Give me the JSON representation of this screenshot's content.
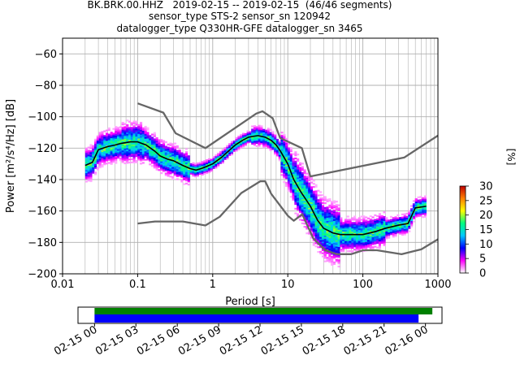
{
  "figure": {
    "title_lines": [
      "BK.BRK.00.HHZ   2019-02-15 -- 2019-02-15  (46/46 segments)",
      "sensor_type STS-2 sensor_sn 120942",
      "datalogger_type Q330HR-GFE datalogger_sn 3465"
    ]
  },
  "chart_data": [
    {
      "type": "heatmap",
      "xlabel": "Period [s]",
      "ylabel": "Power [m²/s⁴/Hz] [dB]",
      "x_scale": "log",
      "xlim": [
        0.01,
        1000
      ],
      "ylim": [
        -200,
        -50
      ],
      "x_ticks": [
        {
          "value": 0.01,
          "label": "0.01"
        },
        {
          "value": 0.1,
          "label": "0.1"
        },
        {
          "value": 1,
          "label": "1"
        },
        {
          "value": 10,
          "label": "10"
        },
        {
          "value": 100,
          "label": "100"
        },
        {
          "value": 1000,
          "label": "1000"
        }
      ],
      "y_ticks": [
        -60,
        -80,
        -100,
        -120,
        -140,
        -160,
        -180,
        -200
      ],
      "grid": true,
      "colorbar": {
        "label": "[%]",
        "min": 0,
        "max": 30,
        "ticks": [
          0,
          5,
          10,
          15,
          20,
          25,
          30
        ],
        "stops": [
          "#ffffff",
          "#ff00ff",
          "#0000ff",
          "#00c8ff",
          "#00ff80",
          "#ffff00",
          "#ff8000",
          "#c00000"
        ]
      },
      "series": [
        {
          "name": "mean",
          "role": "mean_psd",
          "color": "#000000",
          "points": [
            [
              0.02,
              -131
            ],
            [
              0.025,
              -129
            ],
            [
              0.03,
              -121
            ],
            [
              0.04,
              -119
            ],
            [
              0.05,
              -118
            ],
            [
              0.06,
              -117
            ],
            [
              0.08,
              -116
            ],
            [
              0.1,
              -116
            ],
            [
              0.13,
              -118
            ],
            [
              0.17,
              -122
            ],
            [
              0.2,
              -125
            ],
            [
              0.25,
              -127
            ],
            [
              0.3,
              -128
            ],
            [
              0.4,
              -131
            ],
            [
              0.5,
              -133
            ],
            [
              0.6,
              -134
            ],
            [
              0.7,
              -133
            ],
            [
              0.8,
              -132
            ],
            [
              1,
              -130
            ],
            [
              1.3,
              -126
            ],
            [
              1.7,
              -121
            ],
            [
              2,
              -118
            ],
            [
              2.5,
              -115
            ],
            [
              3,
              -113
            ],
            [
              4,
              -112
            ],
            [
              5,
              -113
            ],
            [
              6,
              -115
            ],
            [
              7,
              -118
            ],
            [
              8,
              -122
            ],
            [
              10,
              -130
            ],
            [
              12,
              -140
            ],
            [
              15,
              -148
            ],
            [
              20,
              -157
            ],
            [
              25,
              -166
            ],
            [
              30,
              -171
            ],
            [
              40,
              -174
            ],
            [
              50,
              -175
            ],
            [
              70,
              -175
            ],
            [
              100,
              -175
            ],
            [
              150,
              -173
            ],
            [
              200,
              -171
            ],
            [
              300,
              -169
            ],
            [
              400,
              -168
            ],
            [
              500,
              -158
            ],
            [
              700,
              -157
            ]
          ]
        },
        {
          "name": "NHNM",
          "role": "noise_model_high",
          "color": "#666666",
          "points": [
            [
              0.1,
              -91.5
            ],
            [
              0.22,
              -97.4
            ],
            [
              0.32,
              -110.5
            ],
            [
              0.8,
              -120
            ],
            [
              3.8,
              -98
            ],
            [
              4.6,
              -96.5
            ],
            [
              6.3,
              -101
            ],
            [
              7.9,
              -113.5
            ],
            [
              15.4,
              -120
            ],
            [
              20,
              -138
            ],
            [
              354.8,
              -126
            ],
            [
              1000,
              -112
            ]
          ]
        },
        {
          "name": "NLNM",
          "role": "noise_model_low",
          "color": "#666666",
          "points": [
            [
              0.1,
              -168
            ],
            [
              0.17,
              -166.7
            ],
            [
              0.4,
              -166.7
            ],
            [
              0.8,
              -169.2
            ],
            [
              1.24,
              -163.7
            ],
            [
              2.4,
              -148.6
            ],
            [
              4.3,
              -141.1
            ],
            [
              5,
              -141.1
            ],
            [
              6,
              -149
            ],
            [
              10,
              -163
            ],
            [
              12,
              -166.2
            ],
            [
              15.6,
              -162.1
            ],
            [
              21.9,
              -177.5
            ],
            [
              31.6,
              -185
            ],
            [
              45,
              -187.5
            ],
            [
              70,
              -187.5
            ],
            [
              101,
              -185
            ],
            [
              154,
              -185
            ],
            [
              328,
              -187.5
            ],
            [
              600,
              -184.4
            ],
            [
              1000,
              -178
            ]
          ]
        }
      ]
    },
    {
      "type": "bar",
      "role": "data_coverage",
      "x_ticks": [
        "02-15 00",
        "02-15 03",
        "02-15 06",
        "02-15 09",
        "02-15 12",
        "02-15 15",
        "02-15 18",
        "02-15 21",
        "02-16 00"
      ],
      "tick_hours": [
        0,
        3,
        6,
        9,
        12,
        15,
        18,
        21,
        24
      ],
      "xlim_hours": [
        -1.2,
        25.2
      ],
      "series": [
        {
          "color": "#008000",
          "start_hour": 0,
          "end_hour": 24.5
        },
        {
          "color": "#0000ff",
          "start_hour": 0,
          "end_hour": 23.5
        }
      ]
    }
  ]
}
